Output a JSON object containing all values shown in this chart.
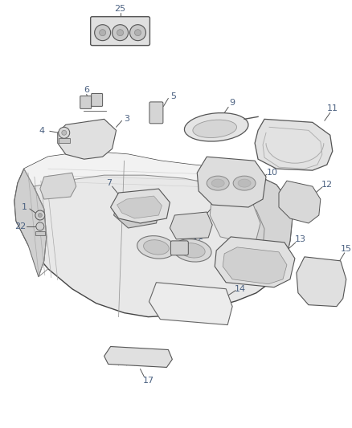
{
  "bg_color": "#ffffff",
  "line_color": "#555555",
  "label_color": "#4a6080",
  "figsize": [
    4.38,
    5.33
  ],
  "dpi": 100,
  "label_fontsize": 7.5
}
